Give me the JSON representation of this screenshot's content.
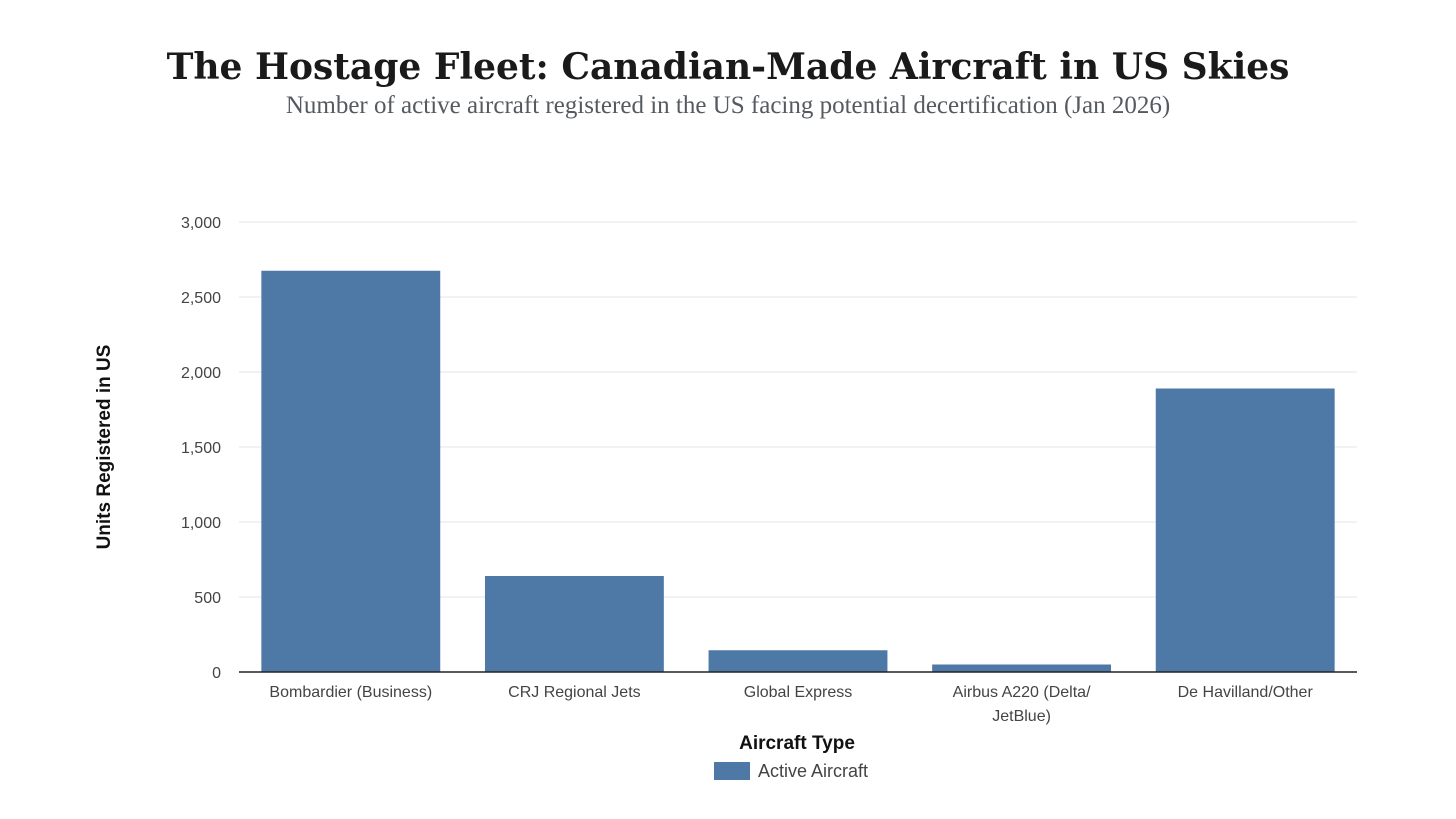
{
  "chart_data": {
    "type": "bar",
    "title": "The Hostage Fleet: Canadian-Made Aircraft in US Skies",
    "subtitle": "Number of active aircraft registered in the US facing potential decertification (Jan 2026)",
    "xlabel": "Aircraft Type",
    "ylabel": "Units Registered in US",
    "categories": [
      "Bombardier (Business)",
      "CRJ Regional Jets",
      "Global Express",
      "Airbus A220 (Delta/ JetBlue)",
      "De Havilland/Other"
    ],
    "series": [
      {
        "name": "Active Aircraft",
        "values": [
          2675,
          640,
          145,
          50,
          1890
        ],
        "color": "#4e79a7"
      }
    ],
    "ylim": [
      0,
      3000
    ],
    "yticks": [
      0,
      500,
      1000,
      1500,
      2000,
      2500,
      3000
    ],
    "ytick_labels": [
      "0",
      "500",
      "1,000",
      "1,500",
      "2,000",
      "2,500",
      "3,000"
    ],
    "grid": true,
    "legend_position": "bottom-center"
  },
  "colors": {
    "bar": "#4e79a7",
    "grid": "#e4e6e9",
    "axis": "#222222"
  }
}
